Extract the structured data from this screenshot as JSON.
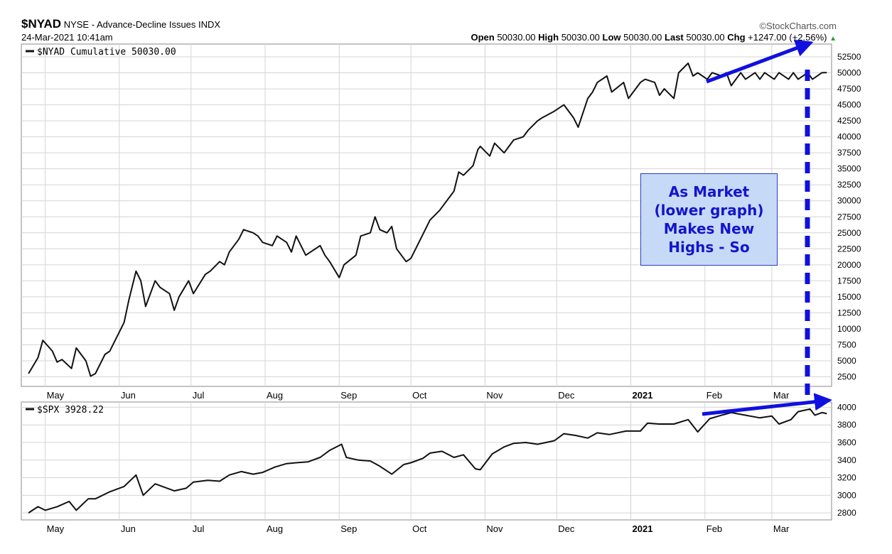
{
  "header": {
    "symbol": "$NYAD",
    "description": "NYSE - Advance-Decline Issues",
    "exchange": "INDX",
    "datetime": "24-Mar-2021 10:41am",
    "brand": "©StockCharts.com",
    "stats": {
      "open_label": "Open",
      "open": "50030.00",
      "high_label": "High",
      "high": "50030.00",
      "low_label": "Low",
      "low": "50030.00",
      "last_label": "Last",
      "last": "50030.00",
      "chg_label": "Chg",
      "chg": "+1247.00 (+2.56%)",
      "arrow": "▲"
    }
  },
  "annotation": {
    "text": "As Market\n(lower graph)\nMakes New\nHighs - So"
  },
  "colors": {
    "line": "#111111",
    "grid": "#d4d4d4",
    "arrow": "#1010e0",
    "annotation_bg": "#c6daf7",
    "up": "#2a9d2a"
  },
  "chart_data": [
    {
      "type": "line",
      "legend": "$NYAD Cumulative 50030.00",
      "ylim": [
        1000,
        54500
      ],
      "yticks": [
        2500,
        5000,
        7500,
        10000,
        12500,
        15000,
        17500,
        20000,
        22500,
        25000,
        27500,
        30000,
        32500,
        35000,
        37500,
        40000,
        42500,
        45000,
        47500,
        50000,
        52500
      ],
      "xlabels": [
        "May",
        "Jun",
        "Jul",
        "Aug",
        "Sep",
        "Oct",
        "Nov",
        "Dec",
        "2021",
        "Feb",
        "Mar"
      ],
      "grid": true,
      "series": [
        {
          "x": [
            "2020-04-24",
            "2020-04-28",
            "2020-04-30",
            "2020-05-04",
            "2020-05-06",
            "2020-05-08",
            "2020-05-12",
            "2020-05-14",
            "2020-05-18",
            "2020-05-20",
            "2020-05-22",
            "2020-05-26",
            "2020-05-28",
            "2020-06-01",
            "2020-06-03",
            "2020-06-05",
            "2020-06-08",
            "2020-06-10",
            "2020-06-12",
            "2020-06-16",
            "2020-06-18",
            "2020-06-22",
            "2020-06-24",
            "2020-06-26",
            "2020-06-30",
            "2020-07-02",
            "2020-07-07",
            "2020-07-09",
            "2020-07-13",
            "2020-07-15",
            "2020-07-17",
            "2020-07-21",
            "2020-07-23",
            "2020-07-27",
            "2020-07-29",
            "2020-07-31",
            "2020-08-04",
            "2020-08-06",
            "2020-08-10",
            "2020-08-12",
            "2020-08-14",
            "2020-08-18",
            "2020-08-20",
            "2020-08-24",
            "2020-08-26",
            "2020-08-28",
            "2020-09-01",
            "2020-09-03",
            "2020-09-08",
            "2020-09-10",
            "2020-09-14",
            "2020-09-16",
            "2020-09-18",
            "2020-09-21",
            "2020-09-23",
            "2020-09-25",
            "2020-09-29",
            "2020-10-01",
            "2020-10-05",
            "2020-10-07",
            "2020-10-09",
            "2020-10-13",
            "2020-10-15",
            "2020-10-19",
            "2020-10-21",
            "2020-10-23",
            "2020-10-27",
            "2020-10-29",
            "2020-10-30",
            "2020-11-03",
            "2020-11-05",
            "2020-11-09",
            "2020-11-11",
            "2020-11-13",
            "2020-11-17",
            "2020-11-19",
            "2020-11-23",
            "2020-11-25",
            "2020-11-30",
            "2020-12-02",
            "2020-12-04",
            "2020-12-08",
            "2020-12-10",
            "2020-12-14",
            "2020-12-16",
            "2020-12-18",
            "2020-12-22",
            "2020-12-24",
            "2020-12-29",
            "2020-12-31",
            "2021-01-05",
            "2021-01-07",
            "2021-01-11",
            "2021-01-13",
            "2021-01-15",
            "2021-01-19",
            "2021-01-21",
            "2021-01-25",
            "2021-01-27",
            "2021-01-29",
            "2021-02-02",
            "2021-02-04",
            "2021-02-08",
            "2021-02-10",
            "2021-02-12",
            "2021-02-16",
            "2021-02-18",
            "2021-02-22",
            "2021-02-24",
            "2021-02-26",
            "2021-03-02",
            "2021-03-04",
            "2021-03-08",
            "2021-03-10",
            "2021-03-12",
            "2021-03-16",
            "2021-03-18",
            "2021-03-22",
            "2021-03-24"
          ],
          "y": [
            3000,
            5500,
            8200,
            6500,
            4800,
            5200,
            3800,
            7000,
            5000,
            2600,
            3000,
            6000,
            6500,
            9500,
            11000,
            14500,
            19000,
            17500,
            13500,
            17500,
            16500,
            15500,
            12900,
            15000,
            17500,
            15500,
            18500,
            19000,
            20500,
            20000,
            22000,
            24000,
            25500,
            25000,
            24500,
            23500,
            23000,
            24500,
            23500,
            22000,
            24500,
            21500,
            22000,
            23000,
            21500,
            20500,
            18000,
            20000,
            21500,
            24500,
            25000,
            27500,
            25500,
            25000,
            26000,
            22500,
            20500,
            21000,
            24000,
            25500,
            27000,
            28500,
            29500,
            31500,
            34500,
            34000,
            35500,
            38000,
            38500,
            37000,
            39000,
            37500,
            38500,
            39500,
            40000,
            41000,
            42500,
            43000,
            44000,
            44500,
            45000,
            43000,
            41500,
            46000,
            47000,
            48500,
            49500,
            47000,
            48500,
            46000,
            48500,
            49000,
            48500,
            46500,
            47500,
            46000,
            50000,
            51500,
            49500,
            50000,
            49000,
            50030,
            49500,
            50030,
            48000,
            50030,
            49000,
            50030,
            49000,
            50030,
            49000,
            50030,
            49000,
            50030,
            49000,
            50030,
            49000,
            50030,
            50030
          ]
        }
      ]
    },
    {
      "type": "line",
      "legend": "$SPX 3928.22",
      "ylim": [
        2720,
        4060
      ],
      "yticks": [
        2800,
        3000,
        3200,
        3400,
        3600,
        3800,
        4000
      ],
      "xlabels": [
        "May",
        "Jun",
        "Jul",
        "Aug",
        "Sep",
        "Oct",
        "Nov",
        "Dec",
        "2021",
        "Feb",
        "Mar"
      ],
      "grid": true,
      "series": [
        {
          "x": [
            "2020-04-24",
            "2020-04-28",
            "2020-05-01",
            "2020-05-06",
            "2020-05-11",
            "2020-05-14",
            "2020-05-19",
            "2020-05-22",
            "2020-05-28",
            "2020-06-03",
            "2020-06-08",
            "2020-06-11",
            "2020-06-16",
            "2020-06-19",
            "2020-06-24",
            "2020-06-29",
            "2020-07-02",
            "2020-07-08",
            "2020-07-13",
            "2020-07-17",
            "2020-07-22",
            "2020-07-27",
            "2020-07-31",
            "2020-08-05",
            "2020-08-10",
            "2020-08-14",
            "2020-08-19",
            "2020-08-24",
            "2020-08-28",
            "2020-09-02",
            "2020-09-04",
            "2020-09-09",
            "2020-09-14",
            "2020-09-18",
            "2020-09-23",
            "2020-09-28",
            "2020-10-01",
            "2020-10-06",
            "2020-10-09",
            "2020-10-14",
            "2020-10-19",
            "2020-10-23",
            "2020-10-28",
            "2020-10-30",
            "2020-11-04",
            "2020-11-09",
            "2020-11-13",
            "2020-11-18",
            "2020-11-23",
            "2020-11-30",
            "2020-12-04",
            "2020-12-09",
            "2020-12-14",
            "2020-12-18",
            "2020-12-23",
            "2020-12-30",
            "2021-01-05",
            "2021-01-08",
            "2021-01-13",
            "2021-01-19",
            "2021-01-25",
            "2021-01-29",
            "2021-02-03",
            "2021-02-08",
            "2021-02-12",
            "2021-02-18",
            "2021-02-24",
            "2021-03-01",
            "2021-03-04",
            "2021-03-09",
            "2021-03-12",
            "2021-03-17",
            "2021-03-19",
            "2021-03-22",
            "2021-03-24"
          ],
          "y": [
            2800,
            2870,
            2830,
            2870,
            2930,
            2830,
            2960,
            2960,
            3040,
            3100,
            3230,
            3000,
            3130,
            3100,
            3050,
            3080,
            3150,
            3170,
            3160,
            3230,
            3270,
            3240,
            3260,
            3320,
            3360,
            3370,
            3380,
            3430,
            3510,
            3580,
            3430,
            3400,
            3390,
            3330,
            3240,
            3350,
            3370,
            3420,
            3480,
            3500,
            3430,
            3460,
            3300,
            3290,
            3470,
            3550,
            3590,
            3600,
            3580,
            3620,
            3700,
            3680,
            3650,
            3710,
            3690,
            3730,
            3730,
            3820,
            3810,
            3810,
            3860,
            3720,
            3870,
            3910,
            3940,
            3910,
            3880,
            3900,
            3810,
            3860,
            3950,
            3980,
            3910,
            3940,
            3928
          ]
        }
      ]
    }
  ]
}
